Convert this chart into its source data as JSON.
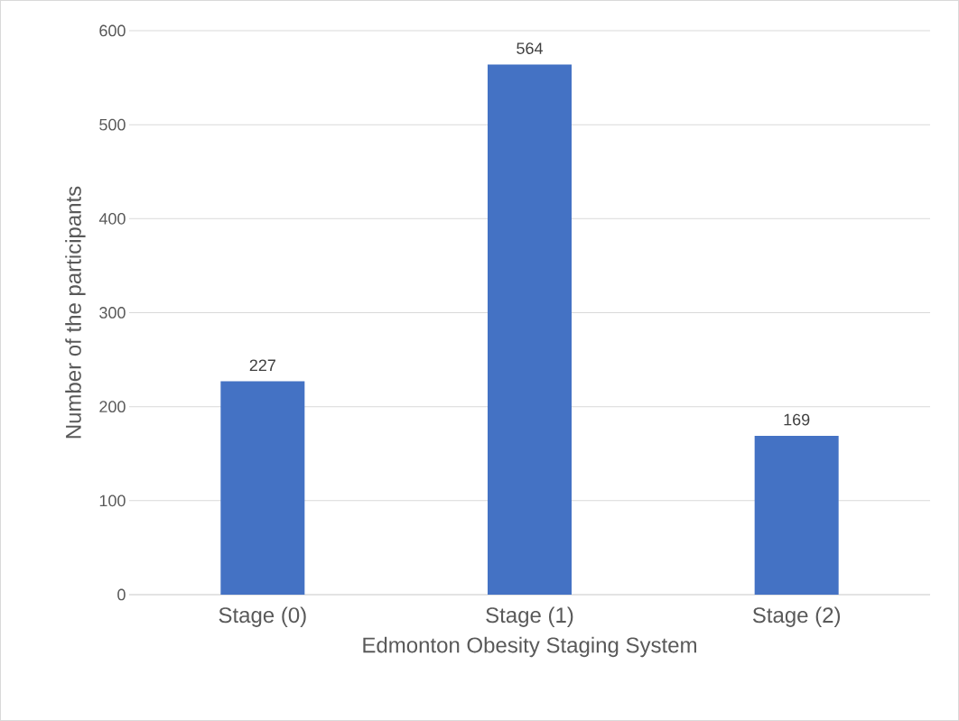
{
  "chart_data": {
    "type": "bar",
    "xlabel": "Edmonton Obesity Staging System",
    "ylabel": "Number of the participants",
    "categories": [
      "Stage (0)",
      "Stage (1)",
      "Stage (2)"
    ],
    "values": [
      227,
      564,
      169
    ],
    "color": "#4472c4",
    "ylim": [
      0,
      600
    ],
    "yticks": [
      0,
      100,
      200,
      300,
      400,
      500,
      600
    ],
    "grid": "y",
    "data_labels": true
  }
}
